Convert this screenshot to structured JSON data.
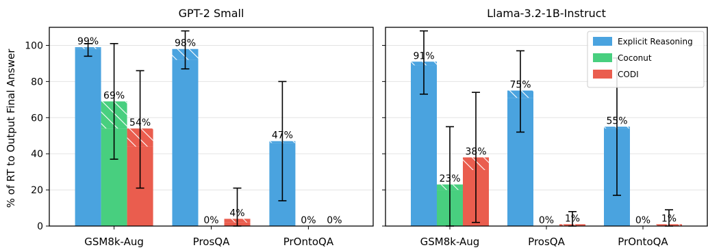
{
  "figure": {
    "ylabel": "% of RT to Output Final Answer",
    "legend_entries": [
      {
        "name": "Explicit Reasoning",
        "color": "#4aa3df"
      },
      {
        "name": "Coconut",
        "color": "#48cf7f"
      },
      {
        "name": "CODI",
        "color": "#ea5d4e"
      }
    ]
  },
  "chart_data": [
    {
      "type": "bar",
      "title": "GPT-2 Small",
      "ylabel": "% of RT to Output Final Answer",
      "categories": [
        "GSM8k-Aug",
        "ProsQA",
        "PrOntoQA"
      ],
      "ylim": [
        0,
        110
      ],
      "yticks": [
        0,
        20,
        40,
        60,
        80,
        100
      ],
      "grid": true,
      "series": [
        {
          "name": "Explicit Reasoning",
          "color": "#4aa3df",
          "values": [
            99,
            98,
            47
          ],
          "labels": [
            "99%",
            "98%",
            "47%"
          ],
          "solid_part": [
            98,
            92,
            46
          ],
          "err_low": [
            94,
            87,
            14
          ],
          "err_high": [
            101,
            108,
            80
          ]
        },
        {
          "name": "Coconut",
          "color": "#48cf7f",
          "values": [
            69,
            0,
            0
          ],
          "labels": [
            "69%",
            "0%",
            "0%"
          ],
          "solid_part": [
            54,
            0,
            0
          ],
          "err_low": [
            37,
            null,
            null
          ],
          "err_high": [
            101,
            null,
            null
          ]
        },
        {
          "name": "CODI",
          "color": "#ea5d4e",
          "values": [
            54,
            4,
            0
          ],
          "labels": [
            "54%",
            "4%",
            "0%"
          ],
          "solid_part": [
            44,
            2,
            0
          ],
          "err_low": [
            21,
            0,
            null
          ],
          "err_high": [
            86,
            21,
            null
          ]
        }
      ]
    },
    {
      "type": "bar",
      "title": "Llama-3.2-1B-Instruct",
      "categories": [
        "GSM8k-Aug",
        "ProsQA",
        "PrOntoQA"
      ],
      "ylim": [
        0,
        110
      ],
      "yticks": [
        0,
        20,
        40,
        60,
        80,
        100
      ],
      "grid": true,
      "legend": "top-right",
      "series": [
        {
          "name": "Explicit Reasoning",
          "color": "#4aa3df",
          "values": [
            91,
            75,
            55
          ],
          "labels": [
            "91%",
            "75%",
            "55%"
          ],
          "solid_part": [
            89,
            71,
            54
          ],
          "err_low": [
            73,
            52,
            17
          ],
          "err_high": [
            108,
            97,
            93
          ]
        },
        {
          "name": "Coconut",
          "color": "#48cf7f",
          "values": [
            23,
            0,
            0
          ],
          "labels": [
            "23%",
            "0%",
            "0%"
          ],
          "solid_part": [
            20,
            0,
            0
          ],
          "err_low": [
            0,
            null,
            null
          ],
          "err_high": [
            55,
            null,
            null
          ]
        },
        {
          "name": "CODI",
          "color": "#ea5d4e",
          "values": [
            38,
            1,
            1
          ],
          "labels": [
            "38%",
            "1%",
            "1%"
          ],
          "solid_part": [
            31,
            0,
            0
          ],
          "err_low": [
            2,
            0,
            0
          ],
          "err_high": [
            74,
            8,
            9
          ]
        }
      ]
    }
  ]
}
